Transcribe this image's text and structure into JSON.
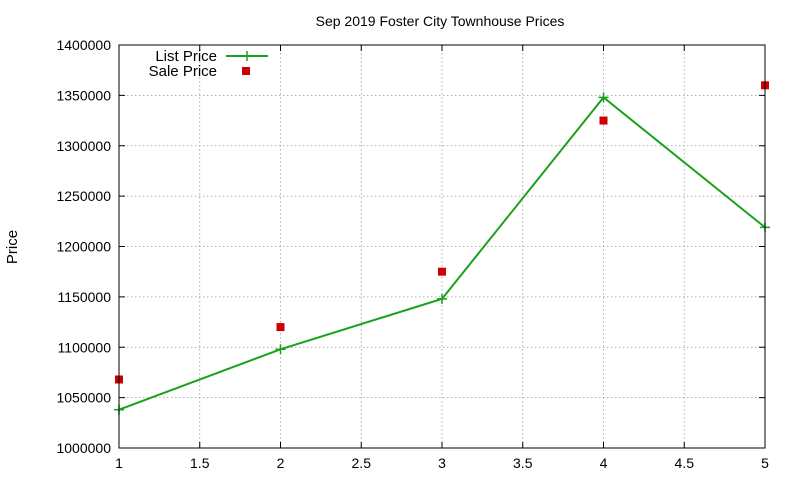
{
  "chart_data": {
    "type": "line",
    "title": "Sep 2019 Foster City Townhouse Prices",
    "xlabel": "",
    "ylabel": "Price",
    "xlim": [
      1,
      5
    ],
    "ylim": [
      1000000,
      1400000
    ],
    "xticks": [
      "1",
      "1.5",
      "2",
      "2.5",
      "3",
      "3.5",
      "4",
      "4.5",
      "5"
    ],
    "yticks": [
      "1000000",
      "1050000",
      "1100000",
      "1150000",
      "1200000",
      "1250000",
      "1300000",
      "1350000",
      "1400000"
    ],
    "grid": true,
    "legend_position": "top-left",
    "series": [
      {
        "name": "List Price",
        "style": "line with plus markers",
        "color": "#1aa11a",
        "x": [
          1,
          2,
          3,
          4,
          5
        ],
        "y": [
          1038000,
          1098000,
          1148000,
          1348000,
          1219000
        ]
      },
      {
        "name": "Sale Price",
        "style": "square markers",
        "color": "#cc0000",
        "x": [
          1,
          2,
          3,
          4,
          5
        ],
        "y": [
          1068000,
          1120000,
          1175000,
          1325000,
          1360000
        ]
      }
    ]
  }
}
